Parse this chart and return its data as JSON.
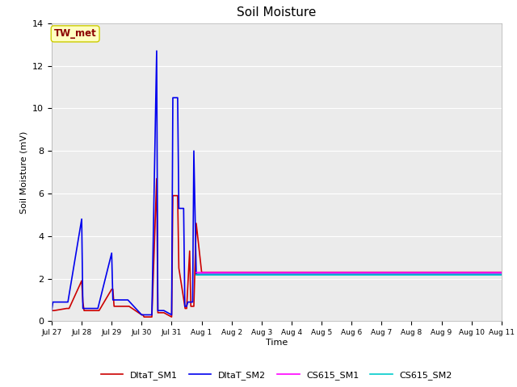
{
  "title": "Soil Moisture",
  "ylabel": "Soil Moisture (mV)",
  "xlabel": "Time",
  "annotation": "TW_met",
  "annotation_color": "#8B0000",
  "annotation_bg": "#FFFFC0",
  "ylim": [
    0,
    14
  ],
  "fig_facecolor": "#FFFFFF",
  "plot_facecolor": "#EBEBEB",
  "legend_labels": [
    "DltaT_SM1",
    "DltaT_SM2",
    "CS615_SM1",
    "CS615_SM2"
  ],
  "legend_colors": [
    "#CC0000",
    "#0000EE",
    "#FF00FF",
    "#00CCCC"
  ],
  "x_tick_labels": [
    "Jul 27",
    "Jul 28",
    "Jul 29",
    "Jul 30",
    "Jul 31",
    "Aug 1",
    "Aug 2",
    "Aug 3",
    "Aug 4",
    "Aug 5",
    "Aug 6",
    "Aug 7",
    "Aug 8",
    "Aug 9",
    "Aug 10",
    "Aug 11"
  ],
  "x_tick_values": [
    0,
    1,
    2,
    3,
    4,
    5,
    6,
    7,
    8,
    9,
    10,
    11,
    12,
    13,
    14,
    15
  ],
  "DltaT_SM1_x": [
    0.0,
    0.04,
    0.08,
    0.5,
    0.54,
    0.58,
    1.0,
    1.04,
    1.08,
    1.5,
    1.54,
    1.58,
    2.0,
    2.04,
    2.08,
    2.5,
    2.54,
    2.58,
    3.0,
    3.04,
    3.08,
    3.3,
    3.34,
    3.5,
    3.54,
    3.7,
    3.74,
    4.0,
    4.04,
    4.2,
    4.24,
    4.45,
    4.5,
    4.6,
    4.64,
    4.7,
    4.74,
    4.82,
    5.0,
    6.0,
    7.0,
    8.0,
    9.0,
    10.0,
    11.0,
    12.0,
    13.0,
    14.0,
    15.0
  ],
  "DltaT_SM1_y": [
    0.5,
    0.5,
    0.5,
    0.6,
    0.6,
    0.6,
    1.9,
    0.9,
    0.5,
    0.5,
    0.5,
    0.5,
    1.5,
    1.5,
    0.7,
    0.7,
    0.7,
    0.7,
    0.3,
    0.3,
    0.2,
    0.2,
    0.2,
    6.7,
    0.4,
    0.4,
    0.4,
    0.2,
    5.9,
    5.9,
    2.5,
    0.6,
    0.6,
    3.3,
    0.7,
    0.7,
    0.7,
    4.6,
    2.3,
    2.3,
    2.3,
    2.3,
    2.3,
    2.3,
    2.3,
    2.3,
    2.3,
    2.3,
    2.3
  ],
  "DltaT_SM2_x": [
    0.0,
    0.04,
    0.5,
    0.54,
    1.0,
    1.04,
    1.5,
    1.54,
    2.0,
    2.04,
    2.5,
    2.54,
    3.0,
    3.04,
    3.3,
    3.34,
    3.5,
    3.54,
    3.7,
    3.74,
    4.0,
    4.04,
    4.2,
    4.24,
    4.4,
    4.44,
    4.5,
    4.54,
    4.7,
    4.74,
    4.82,
    5.0,
    6.0,
    7.0,
    8.0,
    9.0,
    10.0,
    11.0,
    12.0,
    13.0,
    14.0,
    15.0
  ],
  "DltaT_SM2_y": [
    0.5,
    0.9,
    0.9,
    0.9,
    4.8,
    0.6,
    0.6,
    0.6,
    3.2,
    1.0,
    1.0,
    1.0,
    0.3,
    0.3,
    0.3,
    0.3,
    12.7,
    0.5,
    0.5,
    0.5,
    0.3,
    10.5,
    10.5,
    5.3,
    5.3,
    0.7,
    0.7,
    0.9,
    0.9,
    8.0,
    2.2,
    2.2,
    2.2,
    2.2,
    2.2,
    2.2,
    2.2,
    2.2,
    2.2,
    2.2,
    2.2,
    2.2
  ],
  "CS615_SM1_x": [
    4.82,
    5.0,
    6.0,
    7.0,
    8.0,
    9.0,
    10.0,
    11.0,
    12.0,
    13.0,
    14.0,
    15.0
  ],
  "CS615_SM1_y": [
    2.27,
    2.27,
    2.27,
    2.27,
    2.27,
    2.27,
    2.27,
    2.27,
    2.27,
    2.27,
    2.27,
    2.27
  ],
  "CS615_SM2_x": [
    4.82,
    5.0,
    6.0,
    7.0,
    8.0,
    9.0,
    10.0,
    11.0,
    12.0,
    13.0,
    14.0,
    15.0
  ],
  "CS615_SM2_y": [
    2.18,
    2.18,
    2.18,
    2.18,
    2.18,
    2.18,
    2.18,
    2.18,
    2.18,
    2.18,
    2.18,
    2.18
  ]
}
